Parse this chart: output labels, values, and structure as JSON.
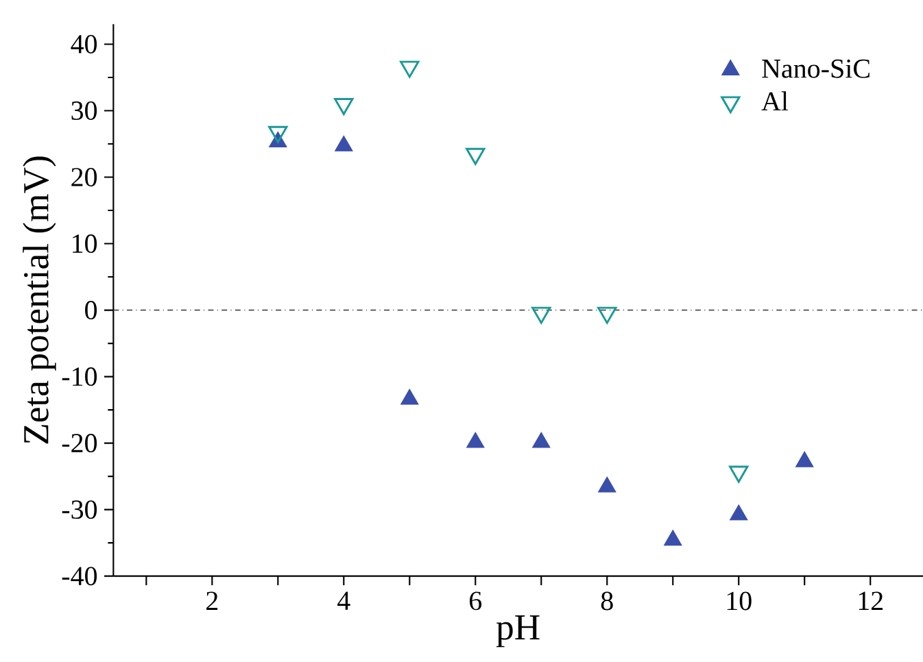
{
  "chart_data": {
    "type": "scatter",
    "xlabel": "pH",
    "ylabel": "Zeta potential (mV)",
    "xlim": [
      0.5,
      12.8
    ],
    "ylim": [
      -40,
      43
    ],
    "xticks": [
      {
        "value": 1,
        "label": null
      },
      2,
      {
        "value": 3,
        "label": null
      },
      4,
      {
        "value": 5,
        "label": null
      },
      6,
      {
        "value": 7,
        "label": null
      },
      8,
      {
        "value": 9,
        "label": null
      },
      10,
      {
        "value": 11,
        "label": null
      },
      12
    ],
    "yticks": [
      -40,
      -30,
      -20,
      -10,
      0,
      10,
      20,
      30,
      40
    ],
    "legend": "top right",
    "ref_lines": [
      {
        "axis": "y",
        "value": 0,
        "line_style": "dashdot",
        "color": "#333333"
      }
    ],
    "series": [
      {
        "name": "Nano-SiC",
        "color": "#3a4faa",
        "marker": "triangle",
        "x": [
          3,
          4,
          5,
          6,
          7,
          8,
          9,
          10,
          11
        ],
        "values": [
          25.3,
          24.7,
          -13.4,
          -19.9,
          -19.9,
          -26.6,
          -34.6,
          -30.8,
          -22.8
        ]
      },
      {
        "name": "Al",
        "color": "#1a9a96",
        "marker": "triangle-down-open",
        "x": [
          3,
          4,
          5,
          6,
          7,
          8,
          10
        ],
        "values": [
          26.8,
          31.0,
          36.6,
          23.5,
          -0.4,
          -0.4,
          -24.3
        ]
      }
    ]
  }
}
